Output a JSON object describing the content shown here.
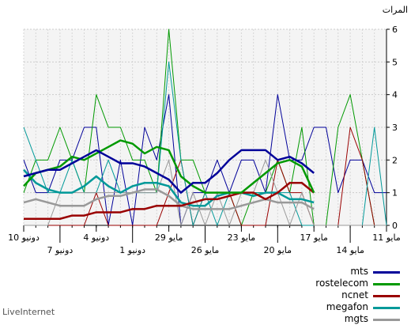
{
  "chart_data": {
    "type": "line",
    "ylabel": "المرات",
    "ylim": [
      0,
      6
    ],
    "yticks": [
      "0",
      "1",
      "2",
      "3",
      "4",
      "5",
      "6"
    ],
    "x_direction": "right-to-left",
    "x": [
      "11 مايو",
      "12 مايو",
      "13 مايو",
      "14 مايو",
      "15 مايو",
      "16 مايو",
      "17 مايو",
      "18 مايو",
      "19 مايو",
      "20 مايو",
      "21 مايو",
      "22 مايو",
      "23 مايو",
      "24 مايو",
      "25 مايو",
      "26 مايو",
      "27 مايو",
      "28 مايو",
      "29 مايو",
      "30 مايو",
      "31 مايو",
      "1 دونيو",
      "2 دونيو",
      "3 دونيو",
      "4 دونيو",
      "5 دونيو",
      "6 دونيو",
      "7 دونيو",
      "8 دونيو",
      "9 دونيو",
      "10 دونيو"
    ],
    "xtick_upper": [
      {
        "i": 0,
        "label": "11 مايو"
      },
      {
        "i": 6,
        "label": "17 مايو"
      },
      {
        "i": 12,
        "label": "23 مايو"
      },
      {
        "i": 18,
        "label": "29 مايو"
      },
      {
        "i": 24,
        "label": "4 دونيو"
      },
      {
        "i": 30,
        "label": "10 دونيو"
      }
    ],
    "xtick_lower": [
      {
        "i": 3,
        "label": "14 مايو"
      },
      {
        "i": 9,
        "label": "20 مايو"
      },
      {
        "i": 15,
        "label": "26 مايو"
      },
      {
        "i": 21,
        "label": "1 دونيو"
      },
      {
        "i": 27,
        "label": "7 دونيو"
      }
    ],
    "grid": true,
    "series": [
      {
        "name": "mts",
        "color": "#000099",
        "daily": [
          1,
          1,
          2,
          2,
          1,
          3,
          3,
          2,
          2,
          4,
          1,
          2,
          2,
          1,
          2,
          1,
          1,
          0,
          4,
          2,
          3,
          0,
          2,
          0,
          3,
          3,
          2,
          2,
          1,
          1,
          2
        ],
        "trend": [
          null,
          null,
          null,
          null,
          null,
          null,
          1.6,
          1.9,
          2.1,
          2.0,
          2.3,
          2.3,
          2.3,
          2.0,
          1.6,
          1.3,
          1.3,
          1.0,
          1.4,
          1.6,
          1.8,
          1.9,
          1.9,
          2.1,
          2.3,
          2.1,
          1.9,
          1.7,
          1.7,
          1.6,
          1.5
        ]
      },
      {
        "name": "rostelecom",
        "color": "#009900",
        "daily": [
          0,
          0,
          2,
          4,
          3,
          0,
          0,
          3,
          1,
          2,
          1,
          1,
          0,
          1,
          1,
          1,
          2,
          2,
          6,
          1,
          2,
          2,
          3,
          3,
          4,
          1,
          2,
          3,
          2,
          2,
          1
        ],
        "trend": [
          null,
          null,
          null,
          null,
          null,
          null,
          1.0,
          1.8,
          2.0,
          1.9,
          1.6,
          1.3,
          1.0,
          1.0,
          1.0,
          1.0,
          1.2,
          1.5,
          2.3,
          2.4,
          2.2,
          2.5,
          2.6,
          2.4,
          2.2,
          2.0,
          2.1,
          1.8,
          1.7,
          1.6,
          1.2
        ]
      },
      {
        "name": "ncnet",
        "color": "#990000",
        "daily": [
          0,
          0,
          2,
          3,
          0,
          0,
          0,
          1,
          1,
          2,
          0,
          0,
          0,
          1,
          1,
          1,
          0,
          2,
          1,
          0,
          0,
          0,
          0,
          0,
          1,
          0,
          0,
          0,
          0,
          0,
          0
        ],
        "trend": [
          null,
          null,
          null,
          null,
          null,
          null,
          1.0,
          1.3,
          1.3,
          1.0,
          0.8,
          1.0,
          1.0,
          0.9,
          0.8,
          0.8,
          0.7,
          0.6,
          0.6,
          0.6,
          0.5,
          0.5,
          0.4,
          0.4,
          0.4,
          0.3,
          0.3,
          0.2,
          0.2,
          0.2,
          0.2
        ]
      },
      {
        "name": "megafon",
        "color": "#009999",
        "daily": [
          0,
          3,
          0,
          0,
          0,
          0,
          0,
          0,
          1,
          1,
          1,
          1,
          1,
          1,
          0,
          1,
          0,
          2,
          5,
          1,
          1,
          1,
          1,
          2,
          1,
          1,
          2,
          1,
          1,
          2,
          3
        ],
        "trend": [
          null,
          null,
          null,
          null,
          null,
          null,
          0.7,
          0.8,
          0.8,
          1.0,
          1.0,
          0.9,
          1.0,
          1.0,
          0.9,
          0.6,
          0.6,
          0.7,
          1.2,
          1.3,
          1.3,
          1.2,
          1.0,
          1.2,
          1.5,
          1.2,
          1.0,
          1.0,
          1.1,
          1.3,
          1.7
        ]
      },
      {
        "name": "mgts",
        "color": "#999999",
        "daily": [
          0,
          0,
          0,
          0,
          0,
          0,
          0,
          1,
          0,
          1,
          2,
          1,
          1,
          0,
          1,
          0,
          1,
          0,
          2,
          1,
          1,
          1,
          1,
          1,
          1,
          1,
          1,
          1,
          0,
          0,
          0
        ],
        "trend": [
          null,
          null,
          null,
          null,
          null,
          null,
          0.5,
          0.7,
          0.7,
          0.7,
          0.8,
          0.7,
          0.6,
          0.5,
          0.5,
          0.5,
          0.5,
          0.6,
          0.9,
          1.1,
          1.1,
          1.0,
          0.9,
          0.9,
          0.8,
          0.6,
          0.6,
          0.6,
          0.7,
          0.8,
          0.7
        ]
      }
    ]
  },
  "footer": "LiveInternet"
}
